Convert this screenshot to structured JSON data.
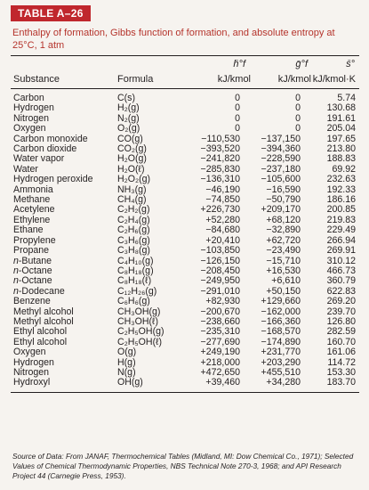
{
  "table_label": "TABLE A–26",
  "caption": "Enthalpy of formation, Gibbs function of formation, and absolute entropy at 25°C, 1 atm",
  "symbols": {
    "h": "h̄°f",
    "g": "ḡ°f",
    "s": "s̄°"
  },
  "columns": {
    "substance": "Substance",
    "formula": "Formula",
    "h_unit": "kJ/kmol",
    "g_unit": "kJ/kmol",
    "s_unit": "kJ/kmol·K"
  },
  "rows": [
    {
      "substance": "Carbon",
      "formula": "C(s)",
      "h": "0",
      "g": "0",
      "s": "5.74"
    },
    {
      "substance": "Hydrogen",
      "formula": "H₂(g)",
      "h": "0",
      "g": "0",
      "s": "130.68"
    },
    {
      "substance": "Nitrogen",
      "formula": "N₂(g)",
      "h": "0",
      "g": "0",
      "s": "191.61"
    },
    {
      "substance": "Oxygen",
      "formula": "O₂(g)",
      "h": "0",
      "g": "0",
      "s": "205.04"
    },
    {
      "substance": "Carbon monoxide",
      "formula": "CO(g)",
      "h": "−110,530",
      "g": "−137,150",
      "s": "197.65"
    },
    {
      "substance": "Carbon dioxide",
      "formula": "CO₂(g)",
      "h": "−393,520",
      "g": "−394,360",
      "s": "213.80"
    },
    {
      "substance": "Water vapor",
      "formula": "H₂O(g)",
      "h": "−241,820",
      "g": "−228,590",
      "s": "188.83"
    },
    {
      "substance": "Water",
      "formula": "H₂O(ℓ)",
      "h": "−285,830",
      "g": "−237,180",
      "s": "69.92"
    },
    {
      "substance": "Hydrogen peroxide",
      "formula": "H₂O₂(g)",
      "h": "−136,310",
      "g": "−105,600",
      "s": "232.63"
    },
    {
      "substance": "Ammonia",
      "formula": "NH₃(g)",
      "h": "−46,190",
      "g": "−16,590",
      "s": "192.33"
    },
    {
      "substance": "Methane",
      "formula": "CH₄(g)",
      "h": "−74,850",
      "g": "−50,790",
      "s": "186.16"
    },
    {
      "substance": "Acetylene",
      "formula": "C₂H₂(g)",
      "h": "+226,730",
      "g": "+209,170",
      "s": "200.85"
    },
    {
      "substance": "Ethylene",
      "formula": "C₂H₄(g)",
      "h": "+52,280",
      "g": "+68,120",
      "s": "219.83"
    },
    {
      "substance": "Ethane",
      "formula": "C₂H₆(g)",
      "h": "−84,680",
      "g": "−32,890",
      "s": "229.49"
    },
    {
      "substance": "Propylene",
      "formula": "C₃H₆(g)",
      "h": "+20,410",
      "g": "+62,720",
      "s": "266.94"
    },
    {
      "substance": "Propane",
      "formula": "C₃H₈(g)",
      "h": "−103,850",
      "g": "−23,490",
      "s": "269.91"
    },
    {
      "substance": "n-Butane",
      "formula": "C₄H₁₀(g)",
      "h": "−126,150",
      "g": "−15,710",
      "s": "310.12"
    },
    {
      "substance": "n-Octane",
      "formula": "C₈H₁₈(g)",
      "h": "−208,450",
      "g": "+16,530",
      "s": "466.73"
    },
    {
      "substance": "n-Octane",
      "formula": "C₈H₁₈(ℓ)",
      "h": "−249,950",
      "g": "+6,610",
      "s": "360.79"
    },
    {
      "substance": "n-Dodecane",
      "formula": "C₁₂H₂₆(g)",
      "h": "−291,010",
      "g": "+50,150",
      "s": "622.83"
    },
    {
      "substance": "Benzene",
      "formula": "C₆H₆(g)",
      "h": "+82,930",
      "g": "+129,660",
      "s": "269.20"
    },
    {
      "substance": "Methyl alcohol",
      "formula": "CH₃OH(g)",
      "h": "−200,670",
      "g": "−162,000",
      "s": "239.70"
    },
    {
      "substance": "Methyl alcohol",
      "formula": "CH₃OH(ℓ)",
      "h": "−238,660",
      "g": "−166,360",
      "s": "126.80"
    },
    {
      "substance": "Ethyl alcohol",
      "formula": "C₂H₅OH(g)",
      "h": "−235,310",
      "g": "−168,570",
      "s": "282.59"
    },
    {
      "substance": "Ethyl alcohol",
      "formula": "C₂H₅OH(ℓ)",
      "h": "−277,690",
      "g": "−174,890",
      "s": "160.70"
    },
    {
      "substance": "Oxygen",
      "formula": "O(g)",
      "h": "+249,190",
      "g": "+231,770",
      "s": "161.06"
    },
    {
      "substance": "Hydrogen",
      "formula": "H(g)",
      "h": "+218,000",
      "g": "+203,290",
      "s": "114.72"
    },
    {
      "substance": "Nitrogen",
      "formula": "N(g)",
      "h": "+472,650",
      "g": "+455,510",
      "s": "153.30"
    },
    {
      "substance": "Hydroxyl",
      "formula": "OH(g)",
      "h": "+39,460",
      "g": "+34,280",
      "s": "183.70"
    }
  ],
  "source": "Source of Data: From JANAF, Thermochemical Tables (Midland, MI: Dow Chemical Co., 1971); Selected Values of Chemical Thermodynamic Properties, NBS Technical Note 270-3, 1968; and API Research Project 44 (Carnegie Press, 1953)."
}
